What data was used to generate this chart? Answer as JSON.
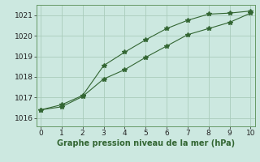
{
  "line1_x": [
    0,
    1,
    2,
    3,
    4,
    5,
    6,
    7,
    8,
    9,
    10
  ],
  "line1_y": [
    1016.4,
    1016.65,
    1017.1,
    1018.55,
    1019.2,
    1019.8,
    1020.35,
    1020.75,
    1021.05,
    1021.1,
    1021.2
  ],
  "line2_x": [
    0,
    1,
    2,
    3,
    4,
    5,
    6,
    7,
    8,
    9,
    10
  ],
  "line2_y": [
    1016.4,
    1016.55,
    1017.05,
    1017.9,
    1018.35,
    1018.95,
    1019.5,
    1020.05,
    1020.35,
    1020.65,
    1021.1
  ],
  "line_color": "#336633",
  "marker": "*",
  "markersize": 4,
  "linewidth": 0.8,
  "xlim": [
    -0.2,
    10.2
  ],
  "ylim": [
    1015.6,
    1021.5
  ],
  "xticks": [
    0,
    1,
    2,
    3,
    4,
    5,
    6,
    7,
    8,
    9,
    10
  ],
  "yticks": [
    1016,
    1017,
    1018,
    1019,
    1020,
    1021
  ],
  "xlabel": "Graphe pression niveau de la mer (hPa)",
  "xlabel_fontsize": 7,
  "xlabel_color": "#336633",
  "tick_fontsize": 6.5,
  "background_color": "#cce8e0",
  "grid_color": "#aaccbb",
  "grid_linewidth": 0.6,
  "fig_width": 3.2,
  "fig_height": 2.0,
  "fig_dpi": 100
}
